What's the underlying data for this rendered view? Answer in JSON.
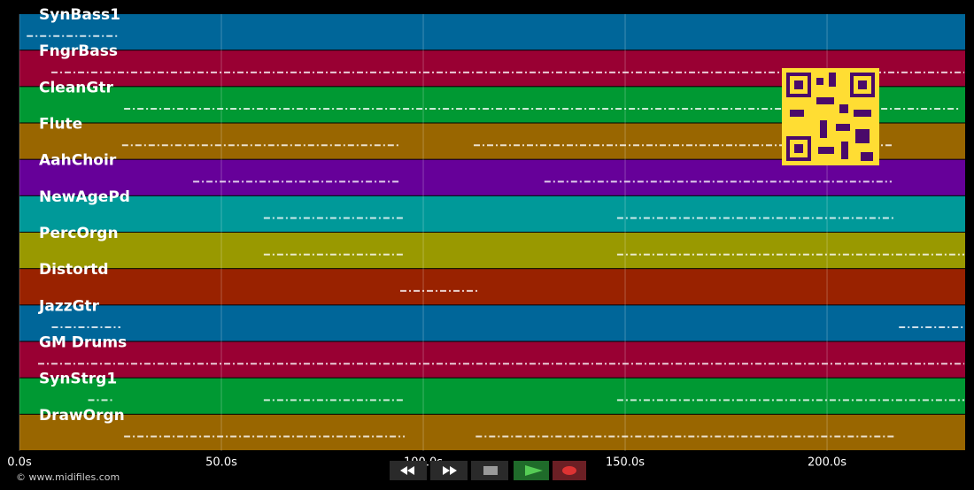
{
  "tracks": [
    {
      "name": "SynBass1",
      "color": "#006699",
      "segments": [
        [
          1.8,
          24.3
        ]
      ]
    },
    {
      "name": "FngrBass",
      "color": "#990033",
      "segments": [
        [
          7.9,
          234
        ]
      ]
    },
    {
      "name": "CleanGtr",
      "color": "#009933",
      "segments": [
        [
          25.9,
          233
        ]
      ]
    },
    {
      "name": "Flute",
      "color": "#996600",
      "segments": [
        [
          25.4,
          94.3
        ],
        [
          112.5,
          216
        ]
      ]
    },
    {
      "name": "AahChoir",
      "color": "#660099",
      "segments": [
        [
          43,
          94.3
        ],
        [
          130,
          216
        ]
      ]
    },
    {
      "name": "NewAgePd",
      "color": "#009999",
      "segments": [
        [
          60.5,
          95.4
        ],
        [
          148,
          217
        ]
      ]
    },
    {
      "name": "PercOrgn",
      "color": "#999900",
      "segments": [
        [
          60.5,
          95.4
        ],
        [
          148,
          234
        ]
      ]
    },
    {
      "name": "Distortd",
      "color": "#992200",
      "segments": [
        [
          94.3,
          113.8
        ]
      ]
    },
    {
      "name": "JazzGtr",
      "color": "#006699",
      "segments": [
        [
          8,
          25
        ],
        [
          217.8,
          234
        ]
      ]
    },
    {
      "name": "GM Drums",
      "color": "#990033",
      "segments": [
        [
          4.6,
          234
        ]
      ]
    },
    {
      "name": "SynStrg1",
      "color": "#009933",
      "segments": [
        [
          17,
          23
        ],
        [
          60.5,
          95.4
        ],
        [
          148,
          234
        ]
      ]
    },
    {
      "name": "DrawOrgn",
      "color": "#996600",
      "segments": [
        [
          25.9,
          95.4
        ],
        [
          113,
          217
        ]
      ]
    }
  ],
  "axis": {
    "xlim": [
      0,
      234.2
    ],
    "xticks": [
      {
        "value": 0,
        "label": "0.0s"
      },
      {
        "value": 50,
        "label": "50.0s"
      },
      {
        "value": 100,
        "label": "100.0s"
      },
      {
        "value": 150,
        "label": "150.0s"
      },
      {
        "value": 200,
        "label": "200.0s"
      }
    ]
  },
  "footer": "© www.midifiles.com"
}
